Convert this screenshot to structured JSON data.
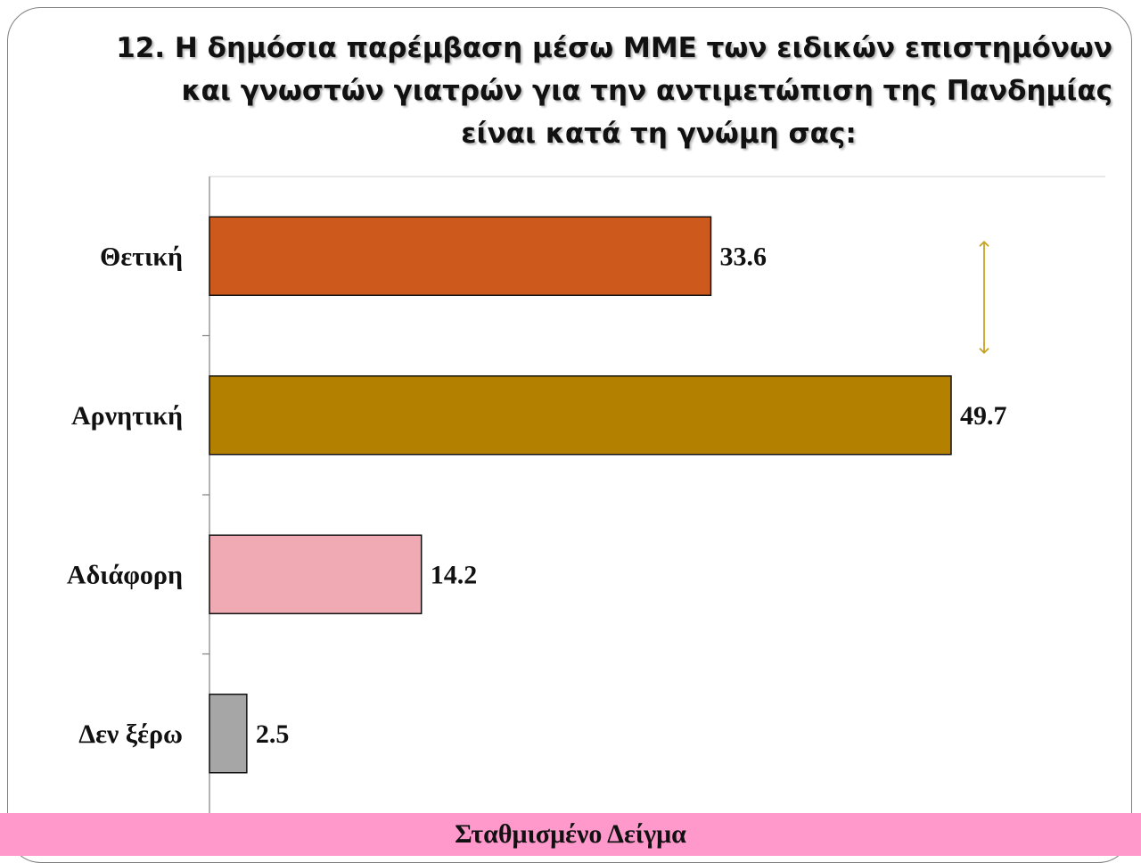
{
  "title": {
    "line1": "12. Η δημόσια παρέμβαση μέσω ΜΜΕ των ειδικών επιστημόνων",
    "line2": "και γνωστών γιατρών για την αντιμετώπιση της Πανδημίας",
    "line3": "είναι κατά τη γνώμη σας:"
  },
  "footer": {
    "label": "Σταθμισμένο Δείγμα"
  },
  "colors": {
    "frame": "#7f7f7f",
    "footer_band": "#ff99cc",
    "arrow": "#c8a020"
  },
  "chart_data": {
    "type": "bar",
    "orientation": "horizontal",
    "categories": [
      "Θετική",
      "Αρνητική",
      "Αδιάφορη",
      "Δεν ξέρω"
    ],
    "values": [
      33.6,
      49.7,
      14.2,
      2.5
    ],
    "value_labels": [
      "33.6",
      "49.7",
      "14.2",
      "2.5"
    ],
    "bar_colors": [
      "#cd5a1c",
      "#b48000",
      "#f0aab4",
      "#a6a6a6"
    ],
    "xlim": [
      0,
      60
    ],
    "grid": false,
    "legend": "none",
    "annotation": "double-headed arrow between Θετική and Αρνητική"
  }
}
